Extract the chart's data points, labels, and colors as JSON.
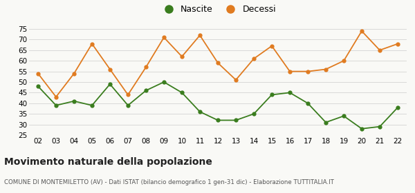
{
  "years": [
    "02",
    "03",
    "04",
    "05",
    "06",
    "07",
    "08",
    "09",
    "10",
    "11",
    "12",
    "13",
    "14",
    "15",
    "16",
    "17",
    "18",
    "19",
    "20",
    "21",
    "22"
  ],
  "nascite": [
    48,
    39,
    41,
    39,
    49,
    39,
    46,
    50,
    45,
    36,
    32,
    32,
    35,
    44,
    45,
    40,
    31,
    34,
    28,
    29,
    38
  ],
  "decessi": [
    54,
    43,
    54,
    68,
    56,
    44,
    57,
    71,
    62,
    72,
    59,
    51,
    61,
    67,
    55,
    55,
    56,
    60,
    74,
    65,
    68
  ],
  "nascite_color": "#3a7d1e",
  "decessi_color": "#e07b20",
  "title": "Movimento naturale della popolazione",
  "subtitle": "COMUNE DI MONTEMILETTO (AV) - Dati ISTAT (bilancio demografico 1 gen-31 dic) - Elaborazione TUTTITALIA.IT",
  "legend_nascite": "Nascite",
  "legend_decessi": "Decessi",
  "ylim": [
    25,
    75
  ],
  "yticks": [
    25,
    30,
    35,
    40,
    45,
    50,
    55,
    60,
    65,
    70,
    75
  ],
  "background_color": "#f9f9f6",
  "grid_color": "#d8d8d8"
}
